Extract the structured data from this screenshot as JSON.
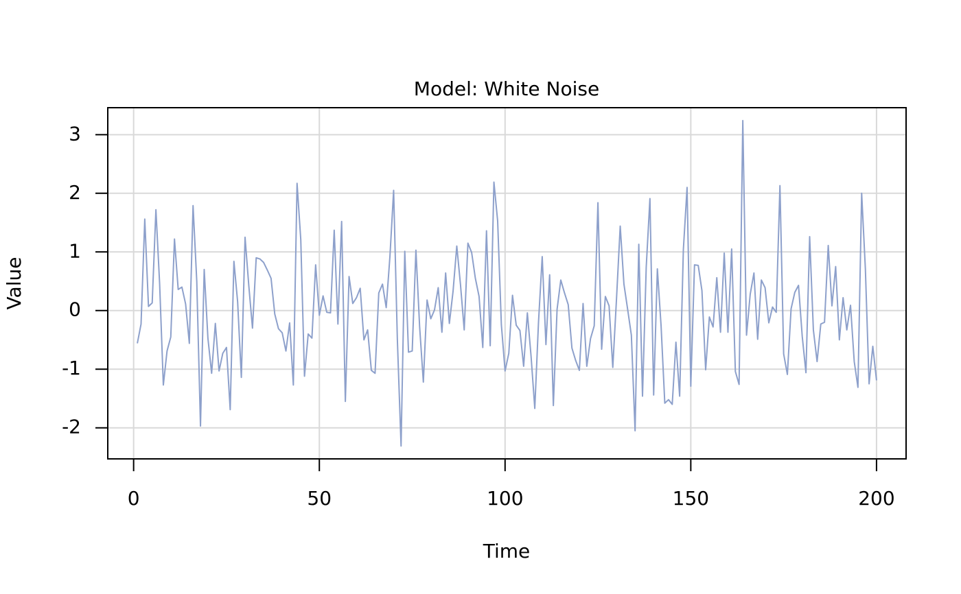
{
  "chart_data": {
    "type": "line",
    "title": "Model: White Noise",
    "x_label": "Time",
    "y_label": "Value",
    "x": [
      1,
      2,
      3,
      4,
      5,
      6,
      7,
      8,
      9,
      10,
      11,
      12,
      13,
      14,
      15,
      16,
      17,
      18,
      19,
      20,
      21,
      22,
      23,
      24,
      25,
      26,
      27,
      28,
      29,
      30,
      31,
      32,
      33,
      34,
      35,
      36,
      37,
      38,
      39,
      40,
      41,
      42,
      43,
      44,
      45,
      46,
      47,
      48,
      49,
      50,
      51,
      52,
      53,
      54,
      55,
      56,
      57,
      58,
      59,
      60,
      61,
      62,
      63,
      64,
      65,
      66,
      67,
      68,
      69,
      70,
      71,
      72,
      73,
      74,
      75,
      76,
      77,
      78,
      79,
      80,
      81,
      82,
      83,
      84,
      85,
      86,
      87,
      88,
      89,
      90,
      91,
      92,
      93,
      94,
      95,
      96,
      97,
      98,
      99,
      100,
      101,
      102,
      103,
      104,
      105,
      106,
      107,
      108,
      109,
      110,
      111,
      112,
      113,
      114,
      115,
      116,
      117,
      118,
      119,
      120,
      121,
      122,
      123,
      124,
      125,
      126,
      127,
      128,
      129,
      130,
      131,
      132,
      133,
      134,
      135,
      136,
      137,
      138,
      139,
      140,
      141,
      142,
      143,
      144,
      145,
      146,
      147,
      148,
      149,
      150,
      151,
      152,
      153,
      154,
      155,
      156,
      157,
      158,
      159,
      160,
      161,
      162,
      163,
      164,
      165,
      166,
      167,
      168,
      169,
      170,
      171,
      172,
      173,
      174,
      175,
      176,
      177,
      178,
      179,
      180,
      181,
      182,
      183,
      184,
      185,
      186,
      187,
      188,
      189,
      190,
      191,
      192,
      193,
      194,
      195,
      196,
      197,
      198,
      199,
      200
    ],
    "series": [
      {
        "color": "#8da0cb",
        "values": [
          -0.56,
          -0.23,
          1.56,
          0.07,
          0.13,
          1.72,
          0.46,
          -1.27,
          -0.69,
          -0.45,
          1.22,
          0.36,
          0.4,
          0.11,
          -0.56,
          1.79,
          0.5,
          -1.97,
          0.7,
          -0.47,
          -1.07,
          -0.22,
          -1.03,
          -0.73,
          -0.63,
          -1.69,
          0.84,
          0.15,
          -1.14,
          1.25,
          0.43,
          -0.3,
          0.9,
          0.88,
          0.82,
          0.69,
          0.55,
          -0.06,
          -0.31,
          -0.38,
          -0.69,
          -0.21,
          -1.27,
          2.17,
          1.21,
          -1.12,
          -0.4,
          -0.47,
          0.78,
          -0.08,
          0.25,
          -0.03,
          -0.04,
          1.37,
          -0.23,
          1.52,
          -1.55,
          0.58,
          0.12,
          0.22,
          0.38,
          -0.5,
          -0.33,
          -1.02,
          -1.07,
          0.3,
          0.45,
          0.05,
          0.92,
          2.05,
          -0.49,
          -2.31,
          1.01,
          -0.71,
          -0.69,
          1.03,
          -0.28,
          -1.22,
          0.18,
          -0.14,
          0.01,
          0.39,
          -0.37,
          0.64,
          -0.22,
          0.33,
          1.1,
          0.44,
          -0.33,
          1.15,
          0.99,
          0.55,
          0.24,
          -0.63,
          1.36,
          -0.6,
          2.19,
          1.53,
          -0.24,
          -1.03,
          -0.73,
          0.26,
          -0.25,
          -0.34,
          -0.95,
          -0.04,
          -0.78,
          -1.67,
          -0.2,
          0.92,
          -0.58,
          0.61,
          -1.62,
          0.02,
          0.52,
          0.3,
          0.1,
          -0.64,
          -0.85,
          -1.02,
          0.12,
          -0.95,
          -0.48,
          -0.26,
          1.84,
          -0.66,
          0.24,
          0.08,
          -0.97,
          0.2,
          1.44,
          0.45,
          0.02,
          -0.42,
          -2.05,
          1.13,
          -1.46,
          0.74,
          1.91,
          -1.44,
          0.71,
          -0.26,
          -1.58,
          -1.52,
          -1.6,
          -0.54,
          -1.46,
          1.04,
          2.1,
          -1.29,
          0.78,
          0.77,
          0.34,
          -1.01,
          -0.11,
          -0.28,
          0.56,
          -0.37,
          0.98,
          -0.37,
          1.05,
          -1.04,
          -1.26,
          3.24,
          -0.42,
          0.28,
          0.64,
          -0.49,
          0.52,
          0.39,
          -0.21,
          0.06,
          -0.03,
          2.13,
          -0.74,
          -1.09,
          0.03,
          0.31,
          0.43,
          -0.44,
          -1.06,
          1.26,
          -0.33,
          -0.87,
          -0.23,
          -0.2,
          1.11,
          0.08,
          0.75,
          -0.5,
          0.22,
          -0.33,
          0.09,
          -0.87,
          -1.31,
          2.0,
          0.71,
          -1.25,
          -0.61,
          -1.19
        ]
      }
    ],
    "xlim": [
      -6.96,
      207.96
    ],
    "ylim": [
      -2.53,
      3.46
    ],
    "xticks": [
      0,
      50,
      100,
      150,
      200
    ],
    "yticks": [
      -2,
      -1,
      0,
      1,
      2,
      3
    ],
    "grid": true
  }
}
